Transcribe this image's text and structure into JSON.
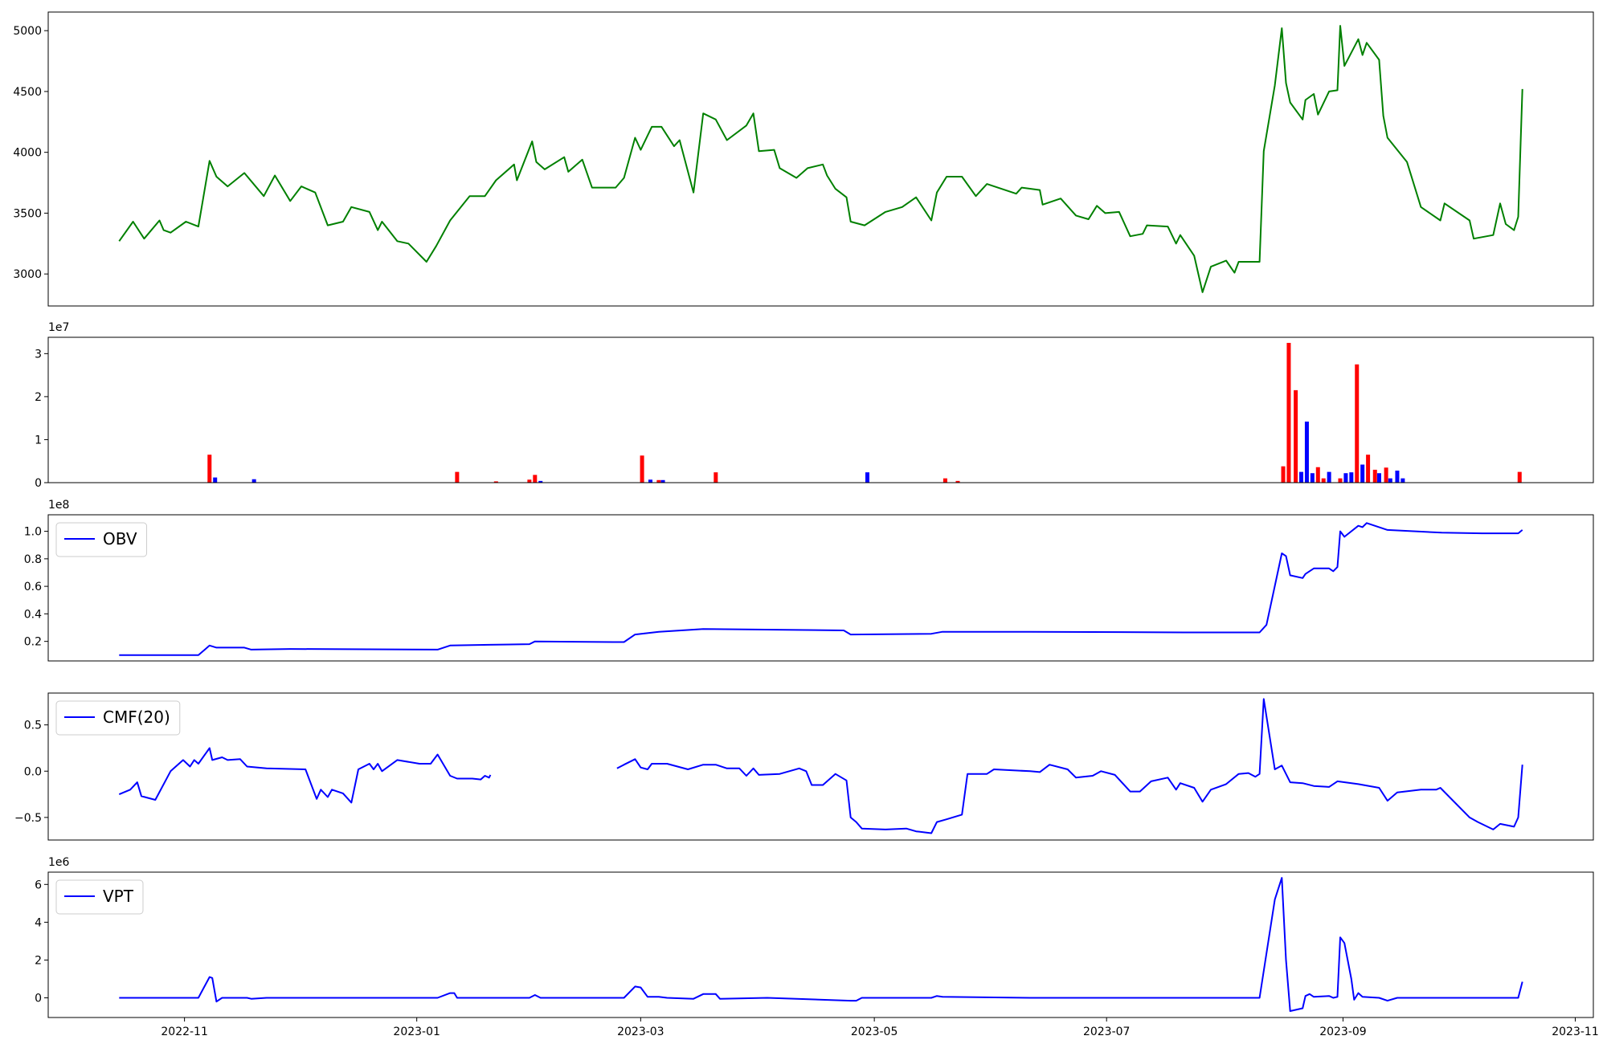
{
  "chart_data": [
    {
      "type": "line",
      "x": [
        2022.786,
        2022.796,
        2022.804,
        2022.815,
        2022.818,
        2022.823,
        2022.834,
        2022.843,
        2022.851,
        2022.856,
        2022.864,
        2022.876,
        2022.89,
        2022.898,
        2022.909,
        2022.917,
        2022.927,
        2022.936,
        2022.947,
        2022.953,
        2022.966,
        2022.972,
        2022.975,
        2022.986,
        2022.994,
        2023.007,
        2023.014,
        2023.024,
        2023.038,
        2023.049,
        2023.057,
        2023.07,
        2023.072,
        2023.083,
        2023.086,
        2023.092,
        2023.106,
        2023.109,
        2023.119,
        2023.126,
        2023.143,
        2023.149,
        2023.157,
        2023.161,
        2023.169,
        2023.176,
        2023.185,
        2023.189,
        2023.199,
        2023.206,
        2023.215,
        2023.223,
        2023.237,
        2023.242,
        2023.246,
        2023.257,
        2023.261,
        2023.273,
        2023.281,
        2023.292,
        2023.295,
        2023.301,
        2023.309,
        2023.312,
        2023.322,
        2023.337,
        2023.349,
        2023.359,
        2023.37,
        2023.374,
        2023.381,
        2023.392,
        2023.402,
        2023.41,
        2023.431,
        2023.435,
        2023.448,
        2023.45,
        2023.463,
        2023.474,
        2023.483,
        2023.489,
        2023.495,
        2023.505,
        2023.513,
        2023.522,
        2023.525,
        2023.54,
        2023.546,
        2023.549,
        2023.559,
        2023.565,
        2023.571,
        2023.582,
        2023.588,
        2023.591,
        2023.606,
        2023.609,
        2023.617,
        2023.622,
        2023.625,
        2023.628,
        2023.637,
        2023.639,
        2023.645,
        2023.648,
        2023.656,
        2023.662,
        2023.664,
        2023.667,
        2023.677,
        2023.68,
        2023.683,
        2023.692,
        2023.695,
        2023.698,
        2023.712,
        2023.722,
        2023.736,
        2023.739,
        2023.757,
        2023.76,
        2023.774,
        2023.779,
        2023.783,
        2023.789,
        2023.792,
        2023.795
      ],
      "series": [
        {
          "color": "green",
          "values": [
            3270,
            3430,
            3290,
            3440,
            3360,
            3340,
            3430,
            3390,
            3930,
            3800,
            3720,
            3830,
            3640,
            3810,
            3600,
            3720,
            3670,
            3400,
            3430,
            3550,
            3510,
            3360,
            3430,
            3270,
            3250,
            3100,
            3230,
            3440,
            3640,
            3640,
            3770,
            3900,
            3770,
            4090,
            3920,
            3860,
            3960,
            3840,
            3940,
            3710,
            3710,
            3790,
            4120,
            4020,
            4210,
            4210,
            4050,
            4100,
            3670,
            4320,
            4270,
            4100,
            4220,
            4320,
            4010,
            4020,
            3870,
            3790,
            3870,
            3900,
            3810,
            3700,
            3630,
            3430,
            3400,
            3510,
            3550,
            3630,
            3440,
            3670,
            3800,
            3800,
            3640,
            3740,
            3660,
            3710,
            3690,
            3570,
            3620,
            3480,
            3450,
            3560,
            3500,
            3510,
            3310,
            3330,
            3400,
            3390,
            3250,
            3320,
            3150,
            2850,
            3060,
            3110,
            3010,
            3100,
            3100,
            4010,
            4550,
            5020,
            4570,
            4410,
            4270,
            4430,
            4480,
            4310,
            4500,
            4510,
            5040,
            4710,
            4930,
            4800,
            4900,
            4760,
            4300,
            4120,
            3920,
            3550,
            3440,
            3580,
            3440,
            3290,
            3320,
            3580,
            3410,
            3360,
            3470,
            4520
          ]
        }
      ],
      "xlim": [
        2022.735,
        2023.846
      ],
      "ylim": [
        2737,
        5153
      ],
      "yticks": [
        3000,
        3500,
        4000,
        4500,
        5000
      ]
    },
    {
      "type": "bar",
      "offset_text": "1e7",
      "series": [
        {
          "color": "red",
          "x": [
            2022.851,
            2023.029,
            2023.057,
            2023.081,
            2023.085,
            2023.162,
            2023.174,
            2023.215,
            2023.38,
            2023.389,
            2023.623,
            2023.627,
            2023.632,
            2023.648,
            2023.652,
            2023.664,
            2023.676,
            2023.684,
            2023.689,
            2023.697,
            2023.793
          ],
          "values": [
            6500000,
            2500000,
            300000,
            700000,
            1800000,
            6300000,
            600000,
            2400000,
            1000000,
            400000,
            3800000,
            32500000,
            21500000,
            3600000,
            1000000,
            1000000,
            27500000,
            6500000,
            3000000,
            3500000,
            2500000
          ]
        },
        {
          "color": "blue",
          "x": [
            2022.855,
            2022.883,
            2023.089,
            2023.168,
            2023.177,
            2023.324,
            2023.636,
            2023.64,
            2023.644,
            2023.656,
            2023.668,
            2023.672,
            2023.68,
            2023.692,
            2023.7,
            2023.705,
            2023.709
          ],
          "values": [
            1200000,
            800000,
            400000,
            700000,
            600000,
            2400000,
            2500000,
            14200000,
            2200000,
            2500000,
            2200000,
            2400000,
            4200000,
            2200000,
            1000000,
            2800000,
            1000000
          ]
        }
      ],
      "xlim": [
        2022.735,
        2023.846
      ],
      "ylim": [
        0,
        33800000
      ],
      "yticks": [
        0,
        {
          "value": 10000000,
          "label": "1"
        },
        {
          "value": 20000000,
          "label": "2"
        },
        {
          "value": 30000000,
          "label": "3"
        }
      ]
    },
    {
      "type": "line",
      "offset_text": "1e8",
      "legend": "upper left",
      "x": [
        2022.786,
        2022.843,
        2022.851,
        2022.856,
        2022.876,
        2022.881,
        2022.909,
        2023.015,
        2023.024,
        2023.052,
        2023.081,
        2023.085,
        2023.144,
        2023.149,
        2023.157,
        2023.174,
        2023.206,
        2023.307,
        2023.312,
        2023.37,
        2023.378,
        2023.441,
        2023.552,
        2023.606,
        2023.611,
        2023.622,
        2023.625,
        2023.628,
        2023.637,
        2023.639,
        2023.645,
        2023.656,
        2023.659,
        2023.662,
        2023.664,
        2023.667,
        2023.677,
        2023.68,
        2023.683,
        2023.698,
        2023.737,
        2023.766,
        2023.792,
        2023.795
      ],
      "series": [
        {
          "name": "OBV",
          "color": "blue",
          "values": [
            10000000,
            10000000,
            17000000,
            15500000,
            15500000,
            14000000,
            14500000,
            14000000,
            17000000,
            17500000,
            18000000,
            20000000,
            19500000,
            19500000,
            25000000,
            27000000,
            29000000,
            28000000,
            25000000,
            25500000,
            27000000,
            27000000,
            26500000,
            26500000,
            32000000,
            84000000,
            82000000,
            68000000,
            66000000,
            69000000,
            73000000,
            73000000,
            71000000,
            74000000,
            100000000,
            96000000,
            104000000,
            103000000,
            106000000,
            101000000,
            99000000,
            98500000,
            98500000,
            101000000
          ]
        }
      ],
      "xlim": [
        2022.735,
        2023.846
      ],
      "ylim": [
        5800000,
        112000000
      ],
      "yticks": [
        {
          "value": 20000000,
          "label": "0.2"
        },
        {
          "value": 40000000,
          "label": "0.4"
        },
        {
          "value": 60000000,
          "label": "0.6"
        },
        {
          "value": 80000000,
          "label": "0.8"
        },
        {
          "value": 100000000,
          "label": "1.0"
        }
      ]
    },
    {
      "type": "line",
      "legend": "upper left",
      "x": [
        2022.786,
        2022.794,
        2022.799,
        2022.802,
        2022.812,
        2022.823,
        2022.832,
        2022.837,
        2022.84,
        2022.843,
        2022.851,
        2022.853,
        2022.86,
        2022.864,
        2022.873,
        2022.878,
        2022.892,
        2022.92,
        2022.928,
        2022.931,
        2022.936,
        2022.939,
        2022.947,
        2022.953,
        2022.958,
        2022.966,
        2022.969,
        2022.972,
        2022.975,
        2022.986,
        2023.002,
        2023.01,
        2023.015,
        2023.024,
        2023.029,
        2023.04,
        2023.046,
        2023.049,
        2023.052,
        2023.053,
        2023.1,
        2023.144,
        2023.149,
        2023.157,
        2023.161,
        2023.166,
        2023.169,
        2023.18,
        2023.195,
        2023.206,
        2023.215,
        2023.223,
        2023.232,
        2023.237,
        2023.242,
        2023.246,
        2023.261,
        2023.275,
        2023.28,
        2023.284,
        2023.292,
        2023.301,
        2023.309,
        2023.312,
        2023.316,
        2023.32,
        2023.337,
        2023.352,
        2023.359,
        2023.37,
        2023.374,
        2023.381,
        2023.392,
        2023.396,
        2023.41,
        2023.415,
        2023.441,
        2023.448,
        2023.455,
        2023.468,
        2023.474,
        2023.486,
        2023.492,
        2023.502,
        2023.513,
        2023.52,
        2023.528,
        2023.54,
        2023.546,
        2023.549,
        2023.559,
        2023.565,
        2023.571,
        2023.582,
        2023.591,
        2023.598,
        2023.603,
        2023.606,
        2023.609,
        2023.617,
        2023.622,
        2023.628,
        2023.637,
        2023.645,
        2023.656,
        2023.662,
        2023.677,
        2023.692,
        2023.698,
        2023.705,
        2023.722,
        2023.733,
        2023.736,
        2023.757,
        2023.763,
        2023.774,
        2023.779,
        2023.789,
        2023.792,
        2023.795
      ],
      "series": [
        {
          "name": "CMF(20)",
          "color": "blue",
          "values": [
            -0.25,
            -0.2,
            -0.12,
            -0.27,
            -0.31,
            0.0,
            0.12,
            0.05,
            0.12,
            0.08,
            0.25,
            0.12,
            0.15,
            0.12,
            0.13,
            0.05,
            0.03,
            0.02,
            -0.3,
            -0.2,
            -0.28,
            -0.2,
            -0.24,
            -0.34,
            0.02,
            0.08,
            0.02,
            0.08,
            0.0,
            0.12,
            0.08,
            0.08,
            0.18,
            -0.05,
            -0.08,
            -0.08,
            -0.09,
            -0.05,
            -0.07,
            -0.04,
            null,
            0.03,
            0.07,
            0.13,
            0.04,
            0.02,
            0.08,
            0.08,
            0.02,
            0.07,
            0.07,
            0.03,
            0.03,
            -0.05,
            0.03,
            -0.04,
            -0.03,
            0.03,
            0.0,
            -0.15,
            -0.15,
            -0.03,
            -0.1,
            -0.5,
            -0.55,
            -0.62,
            -0.63,
            -0.62,
            -0.65,
            -0.67,
            -0.55,
            -0.52,
            -0.47,
            -0.03,
            -0.03,
            0.02,
            0.0,
            -0.01,
            0.07,
            0.02,
            -0.07,
            -0.05,
            0.0,
            -0.04,
            -0.22,
            -0.22,
            -0.11,
            -0.07,
            -0.2,
            -0.13,
            -0.18,
            -0.33,
            -0.2,
            -0.14,
            -0.03,
            -0.02,
            -0.06,
            -0.03,
            0.78,
            0.02,
            0.06,
            -0.12,
            -0.13,
            -0.16,
            -0.17,
            -0.11,
            -0.14,
            -0.18,
            -0.32,
            -0.23,
            -0.2,
            -0.2,
            -0.18,
            -0.5,
            -0.55,
            -0.63,
            -0.57,
            -0.6,
            -0.5,
            0.07
          ]
        }
      ],
      "xlim": [
        2022.735,
        2023.846
      ],
      "ylim": [
        -0.744,
        0.844
      ],
      "yticks": [
        {
          "value": -0.5,
          "label": "−0.5"
        },
        {
          "value": 0,
          "label": "0.0"
        },
        0.5
      ]
    },
    {
      "type": "line",
      "offset_text": "1e6",
      "legend": "upper left",
      "x": [
        2022.786,
        2022.843,
        2022.851,
        2022.853,
        2022.856,
        2022.86,
        2022.878,
        2022.881,
        2022.892,
        2023.015,
        2023.024,
        2023.027,
        2023.029,
        2023.052,
        2023.07,
        2023.081,
        2023.085,
        2023.089,
        2023.149,
        2023.157,
        2023.161,
        2023.166,
        2023.174,
        2023.18,
        2023.199,
        2023.206,
        2023.215,
        2023.218,
        2023.252,
        2023.312,
        2023.316,
        2023.32,
        2023.37,
        2023.374,
        2023.378,
        2023.441,
        2023.606,
        2023.617,
        2023.622,
        2023.625,
        2023.628,
        2023.637,
        2023.639,
        2023.642,
        2023.645,
        2023.656,
        2023.659,
        2023.662,
        2023.664,
        2023.667,
        2023.672,
        2023.674,
        2023.677,
        2023.68,
        2023.692,
        2023.698,
        2023.705,
        2023.792,
        2023.795
      ],
      "series": [
        {
          "name": "VPT",
          "color": "blue",
          "values": [
            0,
            0,
            1100000,
            1050000,
            -200000,
            0,
            0,
            -50000,
            0,
            0,
            250000,
            250000,
            0,
            0,
            0,
            0,
            150000,
            0,
            0,
            600000,
            550000,
            50000,
            50000,
            0,
            -50000,
            200000,
            200000,
            -50000,
            0,
            -150000,
            -150000,
            0,
            0,
            100000,
            50000,
            0,
            0,
            5200000,
            6350000,
            2000000,
            -700000,
            -550000,
            100000,
            200000,
            50000,
            100000,
            0,
            50000,
            3200000,
            2900000,
            1000000,
            -100000,
            250000,
            50000,
            0,
            -150000,
            0,
            0,
            850000
          ]
        }
      ],
      "xlim": [
        2022.735,
        2023.846
      ],
      "ylim": [
        -1040000,
        6650000
      ],
      "yticks": [
        0,
        {
          "value": 2000000,
          "label": "2"
        },
        {
          "value": 4000000,
          "label": "4"
        },
        {
          "value": 6000000,
          "label": "6"
        }
      ],
      "xticks": [
        {
          "value": 2022.833,
          "label": "2022-11"
        },
        {
          "value": 2023.0,
          "label": "2023-01"
        },
        {
          "value": 2023.161,
          "label": "2023-03"
        },
        {
          "value": 2023.329,
          "label": "2023-05"
        },
        {
          "value": 2023.496,
          "label": "2023-07"
        },
        {
          "value": 2023.666,
          "label": "2023-09"
        },
        {
          "value": 2023.833,
          "label": "2023-11"
        }
      ]
    }
  ]
}
